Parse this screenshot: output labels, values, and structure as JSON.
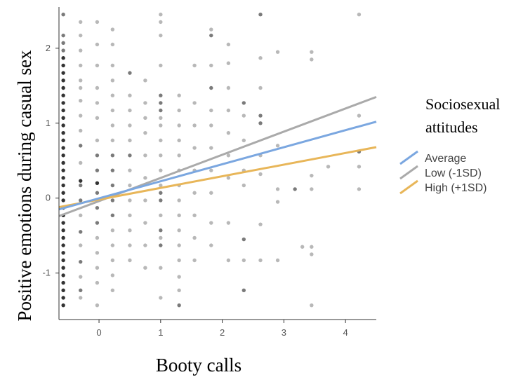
{
  "chart_data": {
    "type": "scatter",
    "title": "",
    "xlabel": "Booty calls",
    "ylabel": "Positive emotions during casual sex",
    "xlim": [
      -0.65,
      4.5
    ],
    "ylim": [
      -1.62,
      2.55
    ],
    "xticks": [
      0,
      1,
      2,
      3,
      4
    ],
    "yticks": [
      -1,
      0,
      1,
      2
    ],
    "grid": false,
    "legend": {
      "title": "Sociosexual attitudes",
      "title_lines": [
        "Sociosexual",
        "attitudes"
      ],
      "placement": "right",
      "entries": [
        "Average",
        "Low (-1SD)",
        "High (+1SD)"
      ]
    },
    "series": [
      {
        "name": "Average",
        "type": "line",
        "color": "#7ba7e0",
        "x": [
          -0.65,
          4.5
        ],
        "y": [
          -0.15,
          1.02
        ]
      },
      {
        "name": "Low (-1SD)",
        "type": "line",
        "color": "#aaaaaa",
        "x": [
          -0.65,
          4.5
        ],
        "y": [
          -0.24,
          1.35
        ]
      },
      {
        "name": "High (+1SD)",
        "type": "line",
        "color": "#e8b659",
        "x": [
          -0.65,
          4.5
        ],
        "y": [
          -0.12,
          0.68
        ]
      }
    ],
    "points": [
      [
        -0.58,
        -1.43,
        1
      ],
      [
        -0.58,
        -1.33,
        1
      ],
      [
        -0.58,
        -1.23,
        1
      ],
      [
        -0.58,
        -1.13,
        1
      ],
      [
        -0.58,
        -1.03,
        1
      ],
      [
        -0.58,
        -0.93,
        1
      ],
      [
        -0.58,
        -0.83,
        1
      ],
      [
        -0.58,
        -0.73,
        1
      ],
      [
        -0.58,
        -0.63,
        1
      ],
      [
        -0.58,
        -0.53,
        1
      ],
      [
        -0.58,
        -0.43,
        1
      ],
      [
        -0.58,
        -0.33,
        1
      ],
      [
        -0.58,
        -0.23,
        1
      ],
      [
        -0.58,
        -0.13,
        1
      ],
      [
        -0.58,
        -0.03,
        1
      ],
      [
        -0.58,
        0.07,
        1
      ],
      [
        -0.58,
        0.17,
        1
      ],
      [
        -0.58,
        0.27,
        1
      ],
      [
        -0.58,
        0.37,
        1
      ],
      [
        -0.58,
        0.47,
        1
      ],
      [
        -0.58,
        0.57,
        1
      ],
      [
        -0.58,
        0.67,
        1
      ],
      [
        -0.58,
        0.77,
        1
      ],
      [
        -0.58,
        0.87,
        1
      ],
      [
        -0.58,
        0.97,
        1
      ],
      [
        -0.58,
        1.07,
        1
      ],
      [
        -0.58,
        1.17,
        1
      ],
      [
        -0.58,
        1.27,
        1
      ],
      [
        -0.58,
        1.37,
        1
      ],
      [
        -0.58,
        1.47,
        1
      ],
      [
        -0.58,
        1.57,
        1
      ],
      [
        -0.58,
        1.67,
        1
      ],
      [
        -0.58,
        1.77,
        1
      ],
      [
        -0.58,
        1.87,
        1
      ],
      [
        -0.58,
        1.97,
        2
      ],
      [
        -0.58,
        2.07,
        2
      ],
      [
        -0.58,
        2.17,
        2
      ],
      [
        -0.58,
        2.45,
        2
      ],
      [
        -0.3,
        -1.33,
        3
      ],
      [
        -0.3,
        -1.23,
        2
      ],
      [
        -0.3,
        -1.05,
        3
      ],
      [
        -0.3,
        -0.85,
        2
      ],
      [
        -0.3,
        -0.63,
        3
      ],
      [
        -0.3,
        -0.45,
        2
      ],
      [
        -0.3,
        -0.23,
        3
      ],
      [
        -0.3,
        -0.03,
        2
      ],
      [
        -0.3,
        0.17,
        2
      ],
      [
        -0.3,
        0.23,
        1
      ],
      [
        -0.3,
        0.47,
        3
      ],
      [
        -0.3,
        0.7,
        2
      ],
      [
        -0.3,
        0.9,
        3
      ],
      [
        -0.3,
        1.1,
        3
      ],
      [
        -0.3,
        1.3,
        3
      ],
      [
        -0.3,
        1.47,
        3
      ],
      [
        -0.3,
        1.57,
        3
      ],
      [
        -0.3,
        1.77,
        3
      ],
      [
        -0.3,
        1.97,
        3
      ],
      [
        -0.3,
        2.17,
        3
      ],
      [
        -0.3,
        2.35,
        3
      ],
      [
        -0.03,
        -1.43,
        3
      ],
      [
        -0.03,
        -1.13,
        3
      ],
      [
        -0.03,
        -0.93,
        3
      ],
      [
        -0.03,
        -0.73,
        3
      ],
      [
        -0.03,
        -0.53,
        3
      ],
      [
        -0.03,
        -0.33,
        2
      ],
      [
        -0.03,
        -0.13,
        2
      ],
      [
        -0.03,
        0.07,
        2
      ],
      [
        -0.03,
        0.2,
        1
      ],
      [
        -0.03,
        0.37,
        2
      ],
      [
        -0.03,
        0.57,
        2
      ],
      [
        -0.03,
        0.77,
        3
      ],
      [
        -0.03,
        1.07,
        3
      ],
      [
        -0.03,
        1.27,
        3
      ],
      [
        -0.03,
        1.47,
        3
      ],
      [
        -0.03,
        1.77,
        3
      ],
      [
        -0.03,
        2.05,
        3
      ],
      [
        -0.03,
        2.35,
        3
      ],
      [
        0.22,
        -1.23,
        3
      ],
      [
        0.22,
        -1.03,
        3
      ],
      [
        0.22,
        -0.83,
        3
      ],
      [
        0.22,
        -0.63,
        3
      ],
      [
        0.22,
        -0.43,
        3
      ],
      [
        0.22,
        -0.23,
        2
      ],
      [
        0.22,
        -0.03,
        2
      ],
      [
        0.22,
        0.17,
        2
      ],
      [
        0.22,
        0.37,
        2
      ],
      [
        0.22,
        0.57,
        2
      ],
      [
        0.22,
        0.77,
        3
      ],
      [
        0.22,
        0.97,
        3
      ],
      [
        0.22,
        1.17,
        3
      ],
      [
        0.22,
        1.37,
        3
      ],
      [
        0.22,
        1.57,
        3
      ],
      [
        0.22,
        1.77,
        3
      ],
      [
        0.22,
        2.05,
        3
      ],
      [
        0.22,
        2.25,
        3
      ],
      [
        0.5,
        -0.83,
        3
      ],
      [
        0.5,
        -0.63,
        3
      ],
      [
        0.5,
        -0.43,
        3
      ],
      [
        0.5,
        -0.23,
        3
      ],
      [
        0.5,
        -0.03,
        3
      ],
      [
        0.5,
        0.17,
        3
      ],
      [
        0.5,
        0.37,
        3
      ],
      [
        0.5,
        0.57,
        2
      ],
      [
        0.5,
        0.77,
        3
      ],
      [
        0.5,
        0.97,
        3
      ],
      [
        0.5,
        1.17,
        3
      ],
      [
        0.5,
        1.37,
        3
      ],
      [
        0.5,
        1.67,
        2
      ],
      [
        0.75,
        -0.93,
        3
      ],
      [
        0.75,
        -0.63,
        3
      ],
      [
        0.75,
        -0.33,
        3
      ],
      [
        0.75,
        -0.03,
        3
      ],
      [
        0.75,
        0.27,
        3
      ],
      [
        0.75,
        0.57,
        3
      ],
      [
        0.75,
        0.87,
        3
      ],
      [
        0.75,
        1.07,
        3
      ],
      [
        0.75,
        1.27,
        3
      ],
      [
        0.75,
        1.57,
        3
      ],
      [
        1.0,
        -1.33,
        3
      ],
      [
        1.0,
        -0.93,
        3
      ],
      [
        1.0,
        -0.63,
        2
      ],
      [
        1.0,
        -0.53,
        3
      ],
      [
        1.0,
        -0.43,
        2
      ],
      [
        1.0,
        -0.23,
        3
      ],
      [
        1.0,
        -0.03,
        2
      ],
      [
        1.0,
        0.07,
        2
      ],
      [
        1.0,
        0.17,
        3
      ],
      [
        1.0,
        0.37,
        3
      ],
      [
        1.0,
        0.57,
        3
      ],
      [
        1.0,
        0.77,
        3
      ],
      [
        1.0,
        0.97,
        3
      ],
      [
        1.0,
        1.07,
        3
      ],
      [
        1.0,
        1.17,
        2
      ],
      [
        1.0,
        1.27,
        2
      ],
      [
        1.0,
        1.37,
        2
      ],
      [
        1.0,
        1.77,
        3
      ],
      [
        1.0,
        2.17,
        3
      ],
      [
        1.0,
        2.35,
        3
      ],
      [
        1.0,
        2.45,
        3
      ],
      [
        1.3,
        -1.43,
        2
      ],
      [
        1.3,
        -1.23,
        3
      ],
      [
        1.3,
        -1.05,
        3
      ],
      [
        1.3,
        -0.83,
        3
      ],
      [
        1.3,
        -0.63,
        3
      ],
      [
        1.3,
        -0.43,
        3
      ],
      [
        1.3,
        -0.23,
        3
      ],
      [
        1.3,
        -0.03,
        3
      ],
      [
        1.3,
        0.17,
        3
      ],
      [
        1.3,
        0.37,
        3
      ],
      [
        1.3,
        0.57,
        3
      ],
      [
        1.3,
        0.77,
        3
      ],
      [
        1.3,
        0.97,
        3
      ],
      [
        1.3,
        1.17,
        3
      ],
      [
        1.3,
        1.37,
        3
      ],
      [
        1.55,
        -0.83,
        3
      ],
      [
        1.55,
        -0.53,
        3
      ],
      [
        1.55,
        -0.23,
        3
      ],
      [
        1.55,
        0.07,
        3
      ],
      [
        1.55,
        0.37,
        3
      ],
      [
        1.55,
        0.67,
        3
      ],
      [
        1.55,
        0.97,
        3
      ],
      [
        1.55,
        1.27,
        3
      ],
      [
        1.55,
        1.77,
        3
      ],
      [
        1.82,
        -0.63,
        3
      ],
      [
        1.82,
        -0.33,
        3
      ],
      [
        1.82,
        0.07,
        3
      ],
      [
        1.82,
        0.37,
        3
      ],
      [
        1.82,
        0.67,
        3
      ],
      [
        1.82,
        0.97,
        3
      ],
      [
        1.82,
        1.17,
        3
      ],
      [
        1.82,
        1.47,
        2
      ],
      [
        1.82,
        1.77,
        3
      ],
      [
        1.82,
        2.17,
        2
      ],
      [
        1.82,
        2.25,
        3
      ],
      [
        2.1,
        -0.83,
        3
      ],
      [
        2.1,
        -0.33,
        3
      ],
      [
        2.1,
        0.27,
        3
      ],
      [
        2.1,
        0.57,
        3
      ],
      [
        2.1,
        0.87,
        3
      ],
      [
        2.1,
        1.17,
        3
      ],
      [
        2.1,
        1.47,
        3
      ],
      [
        2.1,
        1.8,
        3
      ],
      [
        2.1,
        2.05,
        3
      ],
      [
        2.35,
        -1.23,
        2
      ],
      [
        2.35,
        -0.83,
        3
      ],
      [
        2.35,
        -0.55,
        2
      ],
      [
        2.35,
        0.17,
        3
      ],
      [
        2.35,
        0.37,
        3
      ],
      [
        2.35,
        0.77,
        3
      ],
      [
        2.35,
        1.1,
        3
      ],
      [
        2.35,
        1.27,
        2
      ],
      [
        2.62,
        -0.83,
        3
      ],
      [
        2.62,
        -0.35,
        3
      ],
      [
        2.62,
        0.32,
        3
      ],
      [
        2.62,
        0.57,
        3
      ],
      [
        2.62,
        1.0,
        2
      ],
      [
        2.62,
        1.1,
        2
      ],
      [
        2.62,
        1.47,
        3
      ],
      [
        2.62,
        1.87,
        3
      ],
      [
        2.62,
        2.45,
        2
      ],
      [
        2.9,
        -0.83,
        3
      ],
      [
        2.9,
        -0.05,
        3
      ],
      [
        2.9,
        0.12,
        3
      ],
      [
        2.9,
        0.7,
        3
      ],
      [
        2.9,
        1.95,
        3
      ],
      [
        3.18,
        0.12,
        2
      ],
      [
        3.3,
        -0.65,
        3
      ],
      [
        3.45,
        -1.43,
        3
      ],
      [
        3.45,
        -0.75,
        3
      ],
      [
        3.45,
        -0.65,
        3
      ],
      [
        3.45,
        0.12,
        3
      ],
      [
        3.45,
        0.3,
        3
      ],
      [
        3.45,
        1.85,
        3
      ],
      [
        3.45,
        1.95,
        3
      ],
      [
        3.72,
        0.42,
        3
      ],
      [
        4.22,
        0.12,
        3
      ],
      [
        4.22,
        0.42,
        3
      ],
      [
        4.22,
        0.62,
        2
      ],
      [
        4.22,
        1.1,
        3
      ],
      [
        4.22,
        2.45,
        3
      ]
    ]
  }
}
